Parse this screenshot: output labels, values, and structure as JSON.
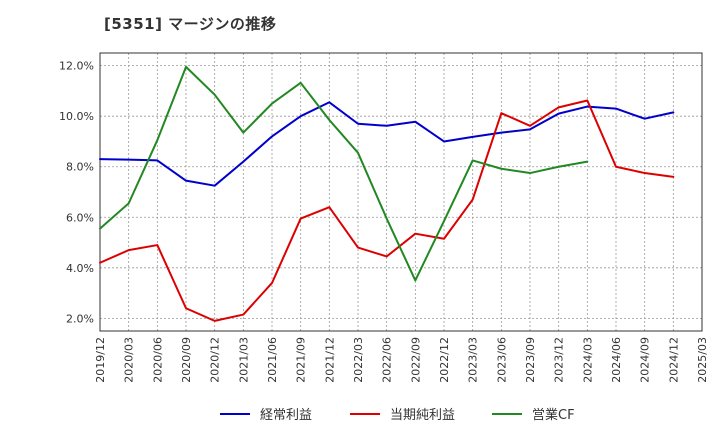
{
  "chart_data": {
    "type": "line",
    "title": "[5351]  マージンの推移",
    "xlabel": "",
    "ylabel": "",
    "x": [
      "2019/12",
      "2020/03",
      "2020/06",
      "2020/09",
      "2020/12",
      "2021/03",
      "2021/06",
      "2021/09",
      "2021/12",
      "2022/03",
      "2022/06",
      "2022/09",
      "2022/12",
      "2023/03",
      "2023/06",
      "2023/09",
      "2023/12",
      "2024/03",
      "2024/06",
      "2024/09",
      "2024/12",
      "2025/03"
    ],
    "ylim": [
      1.5,
      12.5
    ],
    "yticks": [
      2.0,
      4.0,
      6.0,
      8.0,
      10.0,
      12.0
    ],
    "ytick_labels": [
      "2.0%",
      "4.0%",
      "6.0%",
      "8.0%",
      "10.0%",
      "12.0%"
    ],
    "grid": true,
    "legend": "bottom",
    "series": [
      {
        "name": "経常利益",
        "color": "#0000cc",
        "values": [
          8.3,
          8.28,
          8.25,
          7.45,
          7.25,
          8.2,
          9.2,
          10.0,
          10.55,
          9.7,
          9.62,
          9.78,
          9.0,
          9.18,
          9.35,
          9.48,
          10.1,
          10.38,
          10.3,
          9.9,
          10.15,
          null
        ]
      },
      {
        "name": "当期純利益",
        "color": "#dd0000",
        "values": [
          4.2,
          4.7,
          4.9,
          2.4,
          1.9,
          2.15,
          3.4,
          5.95,
          6.4,
          4.8,
          4.45,
          5.35,
          5.15,
          6.7,
          10.12,
          9.62,
          10.35,
          10.62,
          8.0,
          7.75,
          7.6,
          null
        ]
      },
      {
        "name": "営業CF",
        "color": "#228822",
        "values": [
          5.55,
          6.55,
          9.05,
          11.95,
          10.85,
          9.35,
          10.5,
          11.32,
          9.85,
          8.55,
          5.95,
          3.5,
          5.85,
          8.25,
          7.92,
          7.75,
          8.0,
          8.2,
          null,
          null,
          null,
          null
        ]
      }
    ]
  }
}
